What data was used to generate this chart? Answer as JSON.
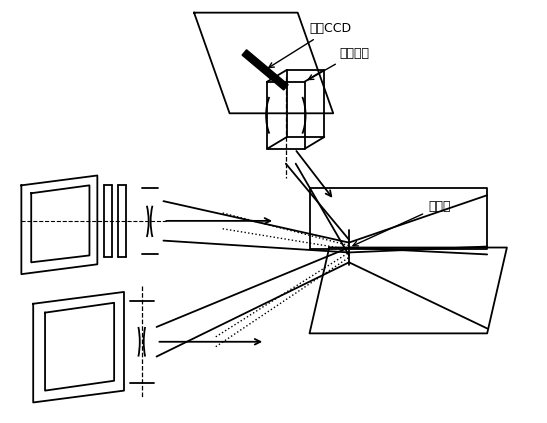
{
  "bg_color": "#ffffff",
  "line_color": "#000000",
  "figsize": [
    5.47,
    4.23
  ],
  "dpi": 100,
  "label_lineccd": "线阵CCD",
  "label_cylinder": "柱面透镜",
  "label_measured": "被测点"
}
